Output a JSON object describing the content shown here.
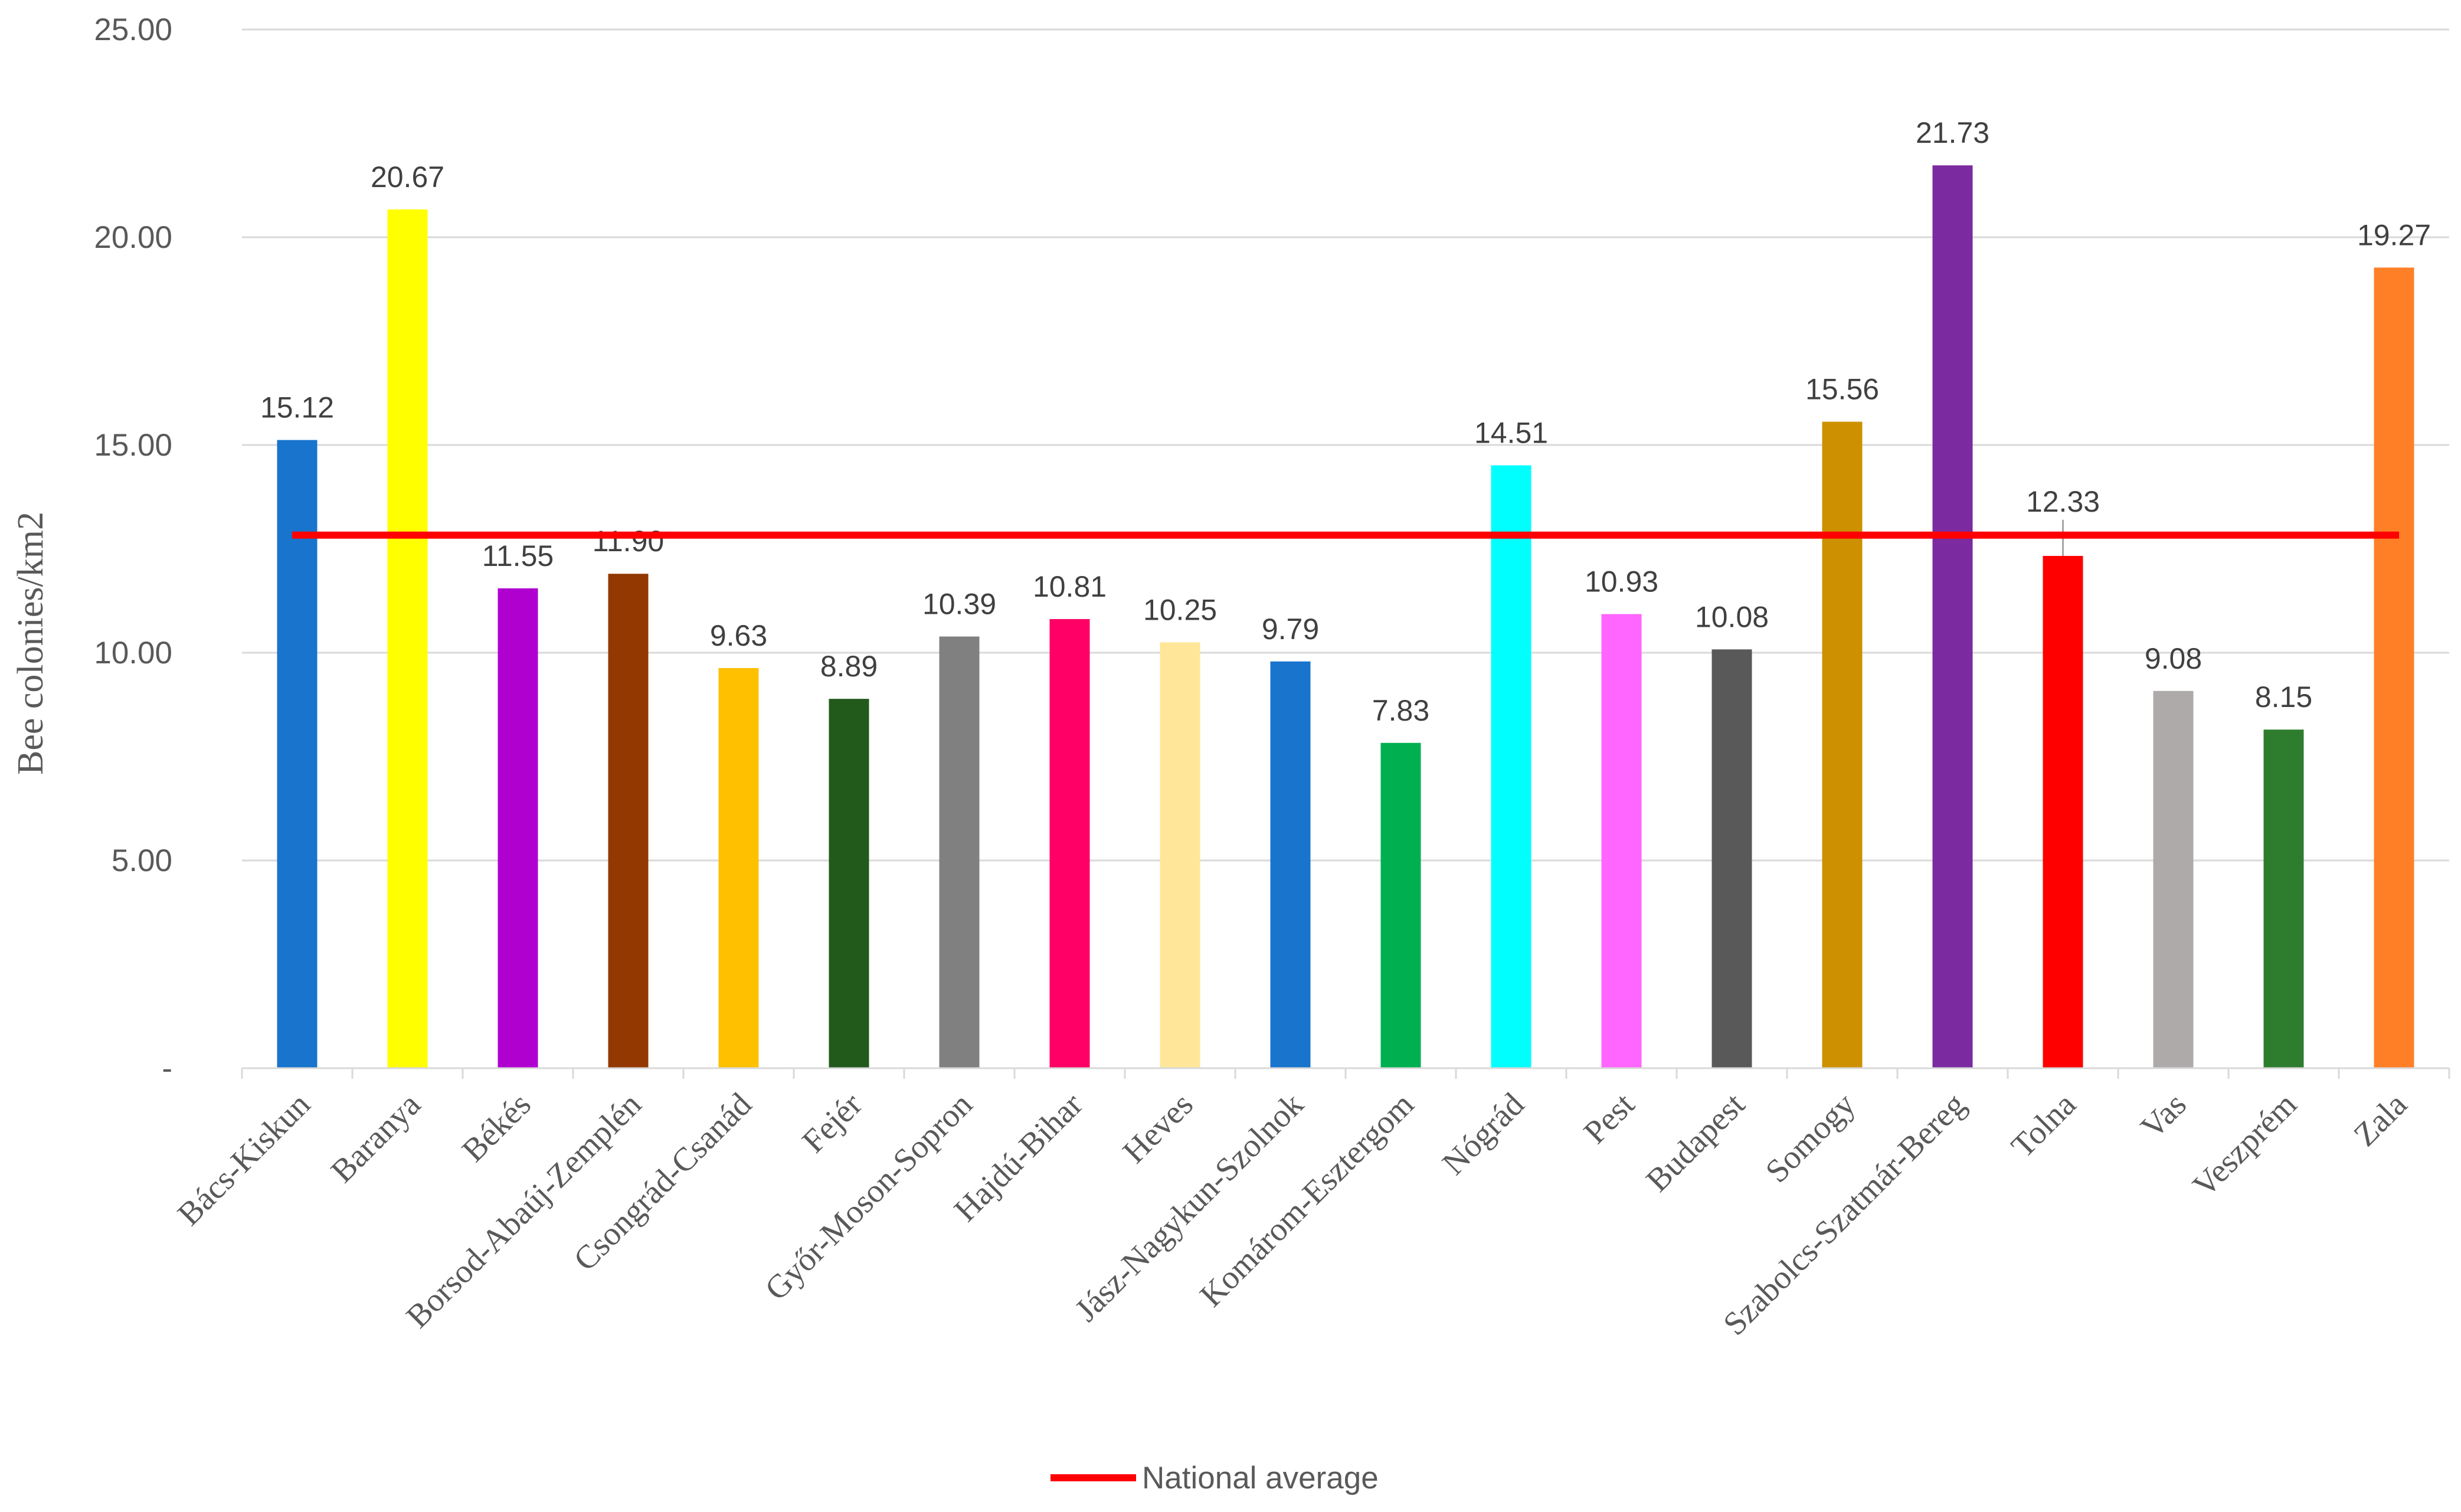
{
  "chart_data": {
    "type": "bar",
    "title": "",
    "xlabel": "",
    "ylabel": "Bee colonies/km2",
    "ylim": [
      0,
      25
    ],
    "yticks": [
      0,
      5,
      10,
      15,
      20,
      25
    ],
    "ytick_labels": [
      "-",
      "5.00",
      "10.00",
      "15.00",
      "20.00",
      "25.00"
    ],
    "grid": true,
    "categories": [
      "Bács-Kiskun",
      "Baranya",
      "Békés",
      "Borsod-Abaúj-Zemplén",
      "Csongrád-Csanád",
      "Fejér",
      "Győr-Moson-Sopron",
      "Hajdú-Bihar",
      "Heves",
      "Jász-Nagykun-Szolnok",
      "Komárom-Esztergom",
      "Nógrád",
      "Pest",
      "Budapest",
      "Somogy",
      "Szabolcs-Szatmár-Bereg",
      "Tolna",
      "Vas",
      "Veszprém",
      "Zala"
    ],
    "values": [
      15.12,
      20.67,
      11.55,
      11.9,
      9.63,
      8.89,
      10.39,
      10.81,
      10.25,
      9.79,
      7.83,
      14.51,
      10.93,
      10.08,
      15.56,
      21.73,
      12.33,
      9.08,
      8.15,
      19.27
    ],
    "value_labels": [
      "15.12",
      "20.67",
      "11.55",
      "11.90",
      "9.63",
      "8.89",
      "10.39",
      "10.81",
      "10.25",
      "9.79",
      "7.83",
      "14.51",
      "10.93",
      "10.08",
      "15.56",
      "21.73",
      "12.33",
      "9.08",
      "8.15",
      "19.27"
    ],
    "colors": [
      "#1874CD",
      "#FFFF00",
      "#B000D0",
      "#933800",
      "#FFC000",
      "#225A1C",
      "#808080",
      "#FF0066",
      "#FFE699",
      "#1874CD",
      "#00B050",
      "#00FFFF",
      "#FF66FF",
      "#595959",
      "#CC9000",
      "#7B2AA0",
      "#FF0000",
      "#AEAAAA",
      "#2E7D2E",
      "#FF7F27"
    ],
    "reference_line": {
      "name": "National average",
      "value": 12.83,
      "color": "#FF0000"
    },
    "legend": {
      "position": "bottom",
      "entries": [
        "National average"
      ]
    }
  }
}
